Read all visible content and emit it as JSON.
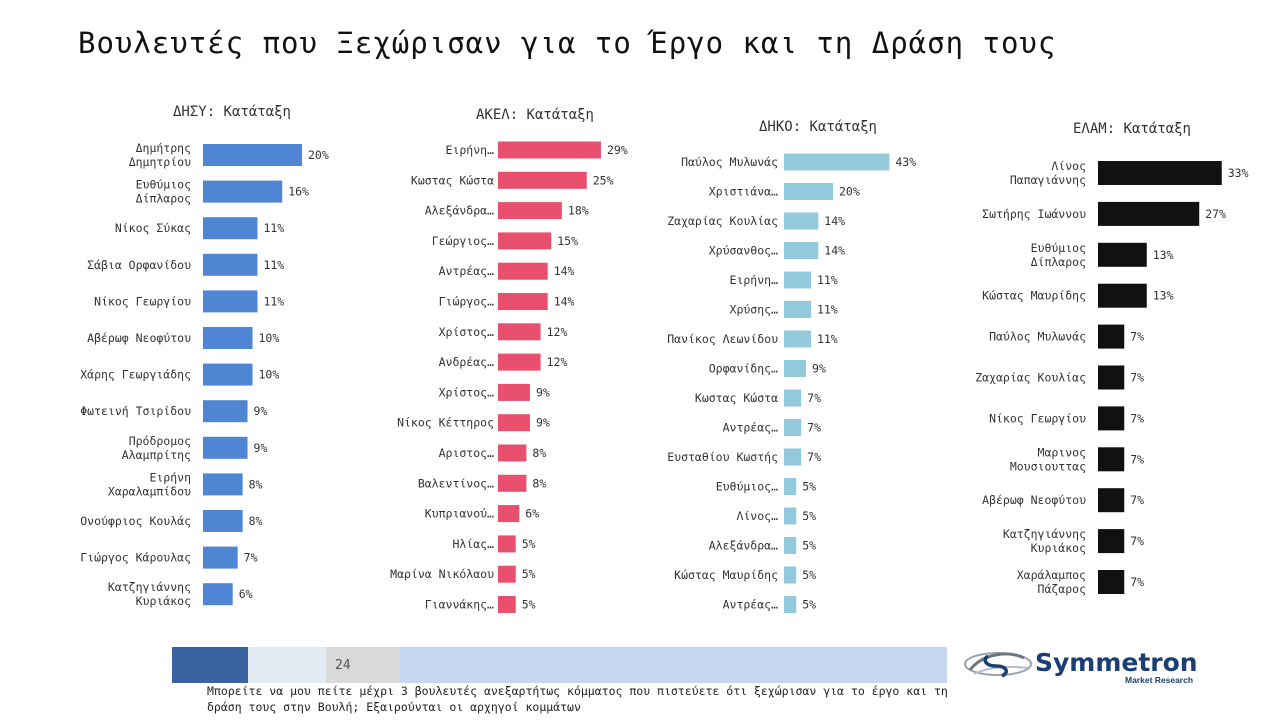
{
  "page": {
    "title": "Βουλευτές που Ξεχώρισαν για το Έργο και τη Δράση τους",
    "page_number": "24",
    "footnote": "Μπορείτε να μου πείτε μέχρι 3 βουλευτές ανεξαρτήτως κόμματος που πιστεύετε ότι ξεχώρισαν για το έργο και τη δράση τους στην Βουλή; Εξαιρούνται οι αρχηγοί κομμάτων",
    "logo_name": "Symmetron",
    "logo_sub": "Market Research"
  },
  "colors": {
    "disy": "#4f86d4",
    "akel": "#e8506d",
    "diko": "#92c9dc",
    "elam": "#111111",
    "footer_dark": "#3a64a0",
    "footer_light": "#e3ebf5",
    "footer_gray": "#d9d9d9",
    "footer_mid": "#c5d6ee"
  },
  "chart_data": [
    {
      "type": "bar",
      "title": "ΔΗΣΥ: Κατάταξη",
      "categories": [
        "Δημήτρης Δημητρίου",
        "Ευθύμιος Δίπλαρος",
        "Νίκος Σύκας",
        "Σάβια Ορφανίδου",
        "Νίκος Γεωργίου",
        "Αβέρωφ Νεοφύτου",
        "Χάρης Γεωργιάδης",
        "Φωτεινή Τσιρίδου",
        "Πρόδρομος Αλαμπρίτης",
        "Ειρήνη Χαραλαμπίδου",
        "Ονούφριος Κουλάς",
        "Γιώργος Κάρουλας",
        "Κατζηγιάννης Κυριάκος"
      ],
      "values": [
        20,
        16,
        11,
        11,
        11,
        10,
        10,
        9,
        9,
        8,
        8,
        7,
        6
      ],
      "value_labels": [
        "20%",
        "16%",
        "11%",
        "11%",
        "11%",
        "10%",
        "10%",
        "9%",
        "9%",
        "8%",
        "8%",
        "7%",
        "6%"
      ],
      "color_key": "disy"
    },
    {
      "type": "bar",
      "title": "ΑΚΕΛ: Κατάταξη",
      "categories": [
        "Ειρήνη…",
        "Κωστας Κώστα",
        "Αλεξάνδρα…",
        "Γεώργιος…",
        "Αντρέας…",
        "Γιώργος…",
        "Χρίστος…",
        "Ανδρέας…",
        "Χρίστος…",
        "Νίκος Κέττηρος",
        "Αριστος…",
        "Βαλεντίνος…",
        "Κυπριανού…",
        "Ηλίας…",
        "Μαρίνα Νικόλαου",
        "Γιαννάκης…"
      ],
      "values": [
        29,
        25,
        18,
        15,
        14,
        14,
        12,
        12,
        9,
        9,
        8,
        8,
        6,
        5,
        5,
        5
      ],
      "value_labels": [
        "29%",
        "25%",
        "18%",
        "15%",
        "14%",
        "14%",
        "12%",
        "12%",
        "9%",
        "9%",
        "8%",
        "8%",
        "6%",
        "5%",
        "5%",
        "5%"
      ],
      "color_key": "akel"
    },
    {
      "type": "bar",
      "title": "ΔΗΚΟ: Κατάταξη",
      "categories": [
        "Παύλος Μυλωνάς",
        "Χριστιάνα…",
        "Ζαχαρίας Κουλίας",
        "Χρύσανθος…",
        "Ειρήνη…",
        "Χρύσης…",
        "Πανίκος Λεωνίδου",
        "Ορφανίδης…",
        "Κωστας Κώστα",
        "Αντρέας…",
        "Ευσταθίου Κωστής",
        "Ευθύμιος…",
        "Λίνος…",
        "Αλεξάνδρα…",
        "Κώστας Μαυρίδης",
        "Αντρέας…"
      ],
      "values": [
        43,
        20,
        14,
        14,
        11,
        11,
        11,
        9,
        7,
        7,
        7,
        5,
        5,
        5,
        5,
        5
      ],
      "value_labels": [
        "43%",
        "20%",
        "14%",
        "14%",
        "11%",
        "11%",
        "11%",
        "9%",
        "7%",
        "7%",
        "7%",
        "5%",
        "5%",
        "5%",
        "5%",
        "5%"
      ],
      "color_key": "diko"
    },
    {
      "type": "bar",
      "title": "ΕΛΑΜ: Κατάταξη",
      "categories": [
        "Λίνος Παπαγιάννης",
        "Σωτήρης Ιωάννου",
        "Ευθύμιος Δίπλαρος",
        "Κώστας Μαυρίδης",
        "Παύλος Μυλωνάς",
        "Ζαχαρίας Κουλίας",
        "Νίκος Γεωργίου",
        "Μαρινος Μουσιουττας",
        "Αβέρωφ Νεοφύτου",
        "Κατζηγιάννης Κυριάκος",
        "Χαράλαμπος Πάζαρος"
      ],
      "values": [
        33,
        27,
        13,
        13,
        7,
        7,
        7,
        7,
        7,
        7,
        7
      ],
      "value_labels": [
        "33%",
        "27%",
        "13%",
        "13%",
        "7%",
        "7%",
        "7%",
        "7%",
        "7%",
        "7%",
        "7%"
      ],
      "color_key": "elam"
    }
  ]
}
